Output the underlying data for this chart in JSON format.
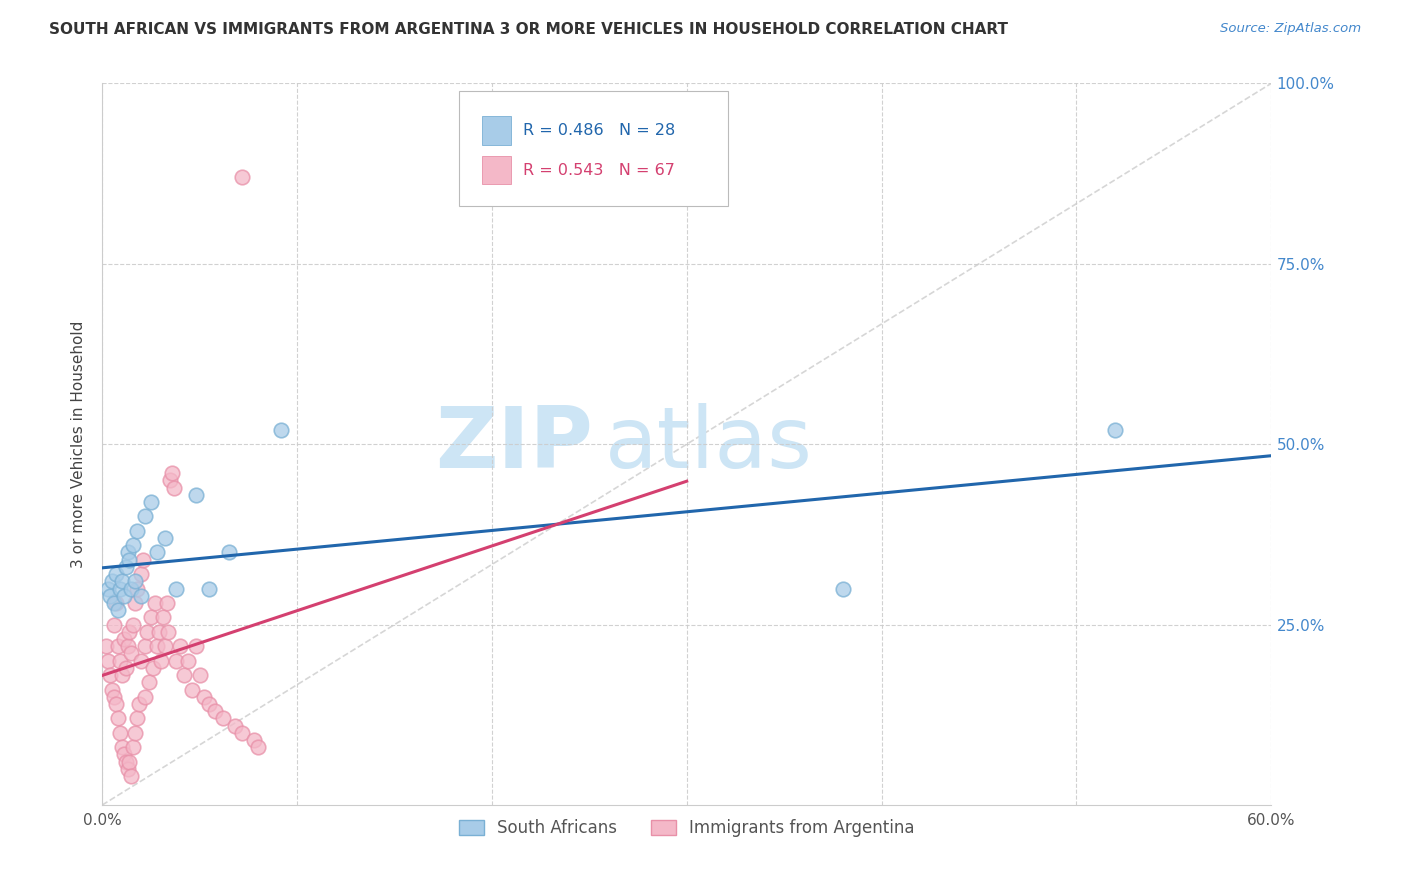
{
  "title": "SOUTH AFRICAN VS IMMIGRANTS FROM ARGENTINA 3 OR MORE VEHICLES IN HOUSEHOLD CORRELATION CHART",
  "source": "Source: ZipAtlas.com",
  "ylabel": "3 or more Vehicles in Household",
  "xlim": [
    0.0,
    0.6
  ],
  "ylim": [
    0.0,
    1.0
  ],
  "xtick_positions": [
    0.0,
    0.1,
    0.2,
    0.3,
    0.4,
    0.5,
    0.6
  ],
  "xticklabels": [
    "0.0%",
    "",
    "",
    "",
    "",
    "",
    "60.0%"
  ],
  "ytick_positions": [
    0.25,
    0.5,
    0.75,
    1.0
  ],
  "yticklabels_right": [
    "25.0%",
    "50.0%",
    "75.0%",
    "100.0%"
  ],
  "legend1_r": "0.486",
  "legend1_n": "28",
  "legend2_r": "0.543",
  "legend2_n": "67",
  "blue_scatter_color": "#a8cce8",
  "blue_edge_color": "#7ab0d4",
  "pink_scatter_color": "#f4b8c8",
  "pink_edge_color": "#e890a8",
  "blue_line_color": "#2166ac",
  "pink_line_color": "#d44070",
  "diagonal_color": "#cccccc",
  "watermark_color": "#cde5f5",
  "south_africans_x": [
    0.003,
    0.004,
    0.005,
    0.006,
    0.007,
    0.008,
    0.009,
    0.01,
    0.011,
    0.012,
    0.013,
    0.014,
    0.015,
    0.016,
    0.017,
    0.018,
    0.02,
    0.022,
    0.025,
    0.028,
    0.032,
    0.038,
    0.048,
    0.055,
    0.065,
    0.092,
    0.38,
    0.52
  ],
  "south_africans_y": [
    0.3,
    0.29,
    0.31,
    0.28,
    0.32,
    0.27,
    0.3,
    0.31,
    0.29,
    0.33,
    0.35,
    0.34,
    0.3,
    0.36,
    0.31,
    0.38,
    0.29,
    0.4,
    0.42,
    0.35,
    0.37,
    0.3,
    0.43,
    0.3,
    0.35,
    0.52,
    0.3,
    0.52
  ],
  "argentina_x": [
    0.002,
    0.003,
    0.004,
    0.005,
    0.006,
    0.006,
    0.007,
    0.007,
    0.008,
    0.008,
    0.009,
    0.009,
    0.01,
    0.01,
    0.011,
    0.011,
    0.012,
    0.012,
    0.013,
    0.013,
    0.014,
    0.014,
    0.015,
    0.015,
    0.016,
    0.016,
    0.017,
    0.017,
    0.018,
    0.018,
    0.019,
    0.02,
    0.02,
    0.021,
    0.022,
    0.022,
    0.023,
    0.024,
    0.025,
    0.026,
    0.027,
    0.028,
    0.029,
    0.03,
    0.031,
    0.032,
    0.033,
    0.034,
    0.035,
    0.036,
    0.037,
    0.038,
    0.04,
    0.042,
    0.044,
    0.046,
    0.048,
    0.05,
    0.052,
    0.055,
    0.058,
    0.062,
    0.068,
    0.072,
    0.078,
    0.08,
    0.072
  ],
  "argentina_y": [
    0.22,
    0.2,
    0.18,
    0.16,
    0.15,
    0.25,
    0.14,
    0.28,
    0.12,
    0.22,
    0.1,
    0.2,
    0.08,
    0.18,
    0.07,
    0.23,
    0.06,
    0.19,
    0.05,
    0.22,
    0.06,
    0.24,
    0.04,
    0.21,
    0.08,
    0.25,
    0.1,
    0.28,
    0.12,
    0.3,
    0.14,
    0.32,
    0.2,
    0.34,
    0.22,
    0.15,
    0.24,
    0.17,
    0.26,
    0.19,
    0.28,
    0.22,
    0.24,
    0.2,
    0.26,
    0.22,
    0.28,
    0.24,
    0.45,
    0.46,
    0.44,
    0.2,
    0.22,
    0.18,
    0.2,
    0.16,
    0.22,
    0.18,
    0.15,
    0.14,
    0.13,
    0.12,
    0.11,
    0.1,
    0.09,
    0.08,
    0.87
  ]
}
